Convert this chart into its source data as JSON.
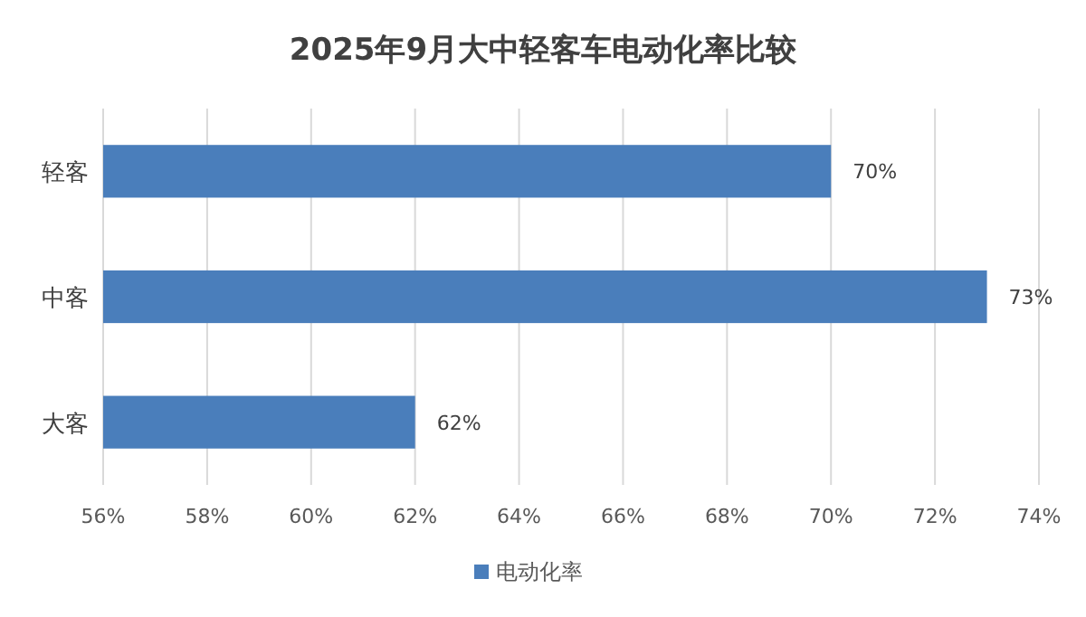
{
  "chart_data": {
    "type": "bar",
    "orientation": "horizontal",
    "title": "2025年9月大中轻客车电动化率比较",
    "categories": [
      "轻客",
      "中客",
      "大客"
    ],
    "series": [
      {
        "name": "电动化率",
        "color": "#4a7ebb",
        "values": [
          70,
          73,
          62
        ],
        "value_labels": [
          "70%",
          "73%",
          "62%"
        ]
      }
    ],
    "xlim": [
      56,
      74
    ],
    "xticks": [
      {
        "value": 56,
        "label": "56%"
      },
      {
        "value": 58,
        "label": "58%"
      },
      {
        "value": 60,
        "label": "60%"
      },
      {
        "value": 62,
        "label": "62%"
      },
      {
        "value": 64,
        "label": "64%"
      },
      {
        "value": 66,
        "label": "66%"
      },
      {
        "value": 68,
        "label": "68%"
      },
      {
        "value": 70,
        "label": "70%"
      },
      {
        "value": 72,
        "label": "72%"
      },
      {
        "value": 74,
        "label": "74%"
      }
    ],
    "grid": "x",
    "legend": "bottom"
  }
}
